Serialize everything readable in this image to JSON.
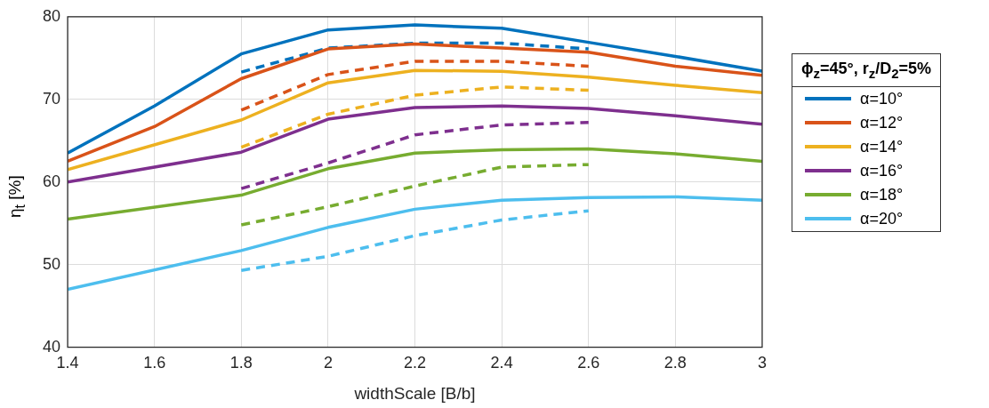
{
  "chart_data": {
    "type": "line",
    "xlabel": "widthScale [B/b]",
    "ylabel": "η$_{t}$ [%]",
    "legend_title": "ϕ$_{z}$=45°, r$_{z}$/D$_{2}$=5%",
    "x": [
      1.4,
      1.6,
      1.8,
      2.0,
      2.2,
      2.4,
      2.6,
      2.8,
      3.0
    ],
    "series": [
      {
        "name": "α=10°",
        "color": "#0072bd",
        "values": [
          63.5,
          69.2,
          75.5,
          78.4,
          79.0,
          78.6,
          76.9,
          75.2,
          73.4
        ]
      },
      {
        "name": "α=12°",
        "color": "#d95319",
        "values": [
          62.5,
          66.7,
          72.5,
          76.1,
          76.7,
          76.2,
          75.7,
          74.0,
          72.9
        ]
      },
      {
        "name": "α=14°",
        "color": "#edb120",
        "values": [
          61.5,
          null,
          67.5,
          72.0,
          73.5,
          73.4,
          72.7,
          71.7,
          70.8
        ]
      },
      {
        "name": "α=16°",
        "color": "#7e2f8e",
        "values": [
          60.0,
          null,
          63.6,
          67.6,
          69.0,
          69.2,
          68.9,
          68.0,
          67.0
        ]
      },
      {
        "name": "α=18°",
        "color": "#77ac30",
        "values": [
          55.5,
          null,
          58.4,
          61.6,
          63.5,
          63.9,
          64.0,
          63.4,
          62.5
        ]
      },
      {
        "name": "α=20°",
        "color": "#4dbeee",
        "values": [
          47.0,
          null,
          51.7,
          54.5,
          56.7,
          57.8,
          58.1,
          58.2,
          57.8
        ]
      },
      {
        "color": "#0072bd",
        "line_style": "dashed",
        "x": [
          1.8,
          2.0,
          2.2,
          2.4,
          2.6
        ],
        "values": [
          73.3,
          76.2,
          76.8,
          76.8,
          76.1
        ]
      },
      {
        "color": "#d95319",
        "line_style": "dashed",
        "x": [
          1.8,
          2.0,
          2.2,
          2.4,
          2.6
        ],
        "values": [
          68.7,
          73.0,
          74.6,
          74.6,
          74.0
        ]
      },
      {
        "color": "#edb120",
        "line_style": "dashed",
        "x": [
          1.8,
          2.0,
          2.2,
          2.4,
          2.6
        ],
        "values": [
          64.2,
          68.2,
          70.5,
          71.5,
          71.1
        ]
      },
      {
        "color": "#7e2f8e",
        "line_style": "dashed",
        "x": [
          1.8,
          2.0,
          2.2,
          2.4,
          2.6
        ],
        "values": [
          59.2,
          62.3,
          65.7,
          66.9,
          67.2
        ]
      },
      {
        "color": "#77ac30",
        "line_style": "dashed",
        "x": [
          1.8,
          2.0,
          2.2,
          2.4,
          2.6
        ],
        "values": [
          54.8,
          57.0,
          59.5,
          61.8,
          62.1
        ]
      },
      {
        "color": "#4dbeee",
        "line_style": "dashed",
        "x": [
          1.8,
          2.0,
          2.2,
          2.4,
          2.6
        ],
        "values": [
          49.3,
          51.0,
          53.5,
          55.4,
          56.5
        ]
      }
    ],
    "xlim": [
      1.4,
      3
    ],
    "xticks": [
      1.4,
      1.6,
      1.8,
      2,
      2.2,
      2.4,
      2.6,
      2.8,
      3
    ],
    "ylim": [
      40,
      80
    ],
    "yticks": [
      40,
      50,
      60,
      70,
      80
    ],
    "grid": true,
    "legend": "right",
    "marker": "none",
    "line_style": "solid"
  }
}
